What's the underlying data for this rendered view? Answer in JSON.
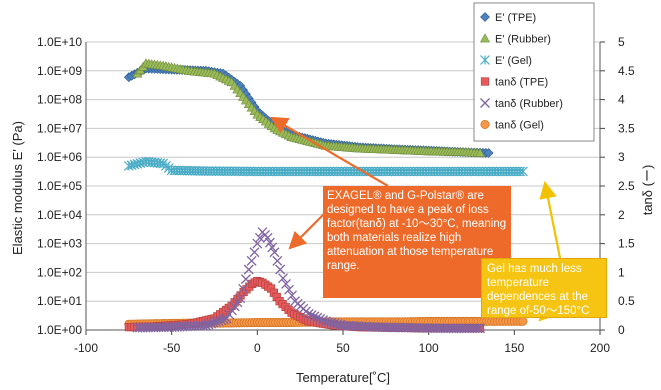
{
  "chart_data": {
    "type": "scatter",
    "xlabel": "Temperature[˚C]",
    "ylabel": "Elastic modulus E' (Pa)",
    "y2label": "tanδ (ー)",
    "xlim": [
      -100,
      200
    ],
    "xticks": [
      "-100",
      "-50",
      "0",
      "50",
      "100",
      "150",
      "200"
    ],
    "ylim_log": [
      0,
      10
    ],
    "yticks": [
      "1.0E+00",
      "1.0E+01",
      "1.0E+02",
      "1.0E+03",
      "1.0E+04",
      "1.0E+05",
      "1.0E+06",
      "1.0E+07",
      "1.0E+08",
      "1.0E+09",
      "1.0E+10"
    ],
    "y2lim": [
      0,
      5
    ],
    "y2ticks": [
      "0",
      "0.5",
      "1",
      "1.5",
      "2",
      "2.5",
      "3",
      "3.5",
      "4",
      "4.5",
      "5"
    ],
    "grid": "horizontal",
    "legend": "top-right",
    "series": [
      {
        "name": "E' (TPE)",
        "axis": "left",
        "marker": "diamond",
        "color": "#4f81bd",
        "x": [
          -75,
          -65,
          -50,
          -30,
          -20,
          -10,
          0,
          10,
          20,
          40,
          60,
          80,
          100,
          120,
          135
        ],
        "y": [
          600000000.0,
          1200000000.0,
          1100000000.0,
          1000000000.0,
          800000000.0,
          300000000.0,
          40000000.0,
          12000000.0,
          6000000.0,
          3000000.0,
          2200000.0,
          1900000.0,
          1700000.0,
          1500000.0,
          1400000.0
        ]
      },
      {
        "name": "E' (Rubber)",
        "axis": "left",
        "marker": "triangle",
        "color": "#9bbb59",
        "x": [
          -70,
          -65,
          -55,
          -40,
          -25,
          -15,
          -5,
          0,
          10,
          20,
          40,
          60,
          80,
          100,
          120,
          130
        ],
        "y": [
          800000000.0,
          1800000000.0,
          1500000000.0,
          1000000000.0,
          800000000.0,
          400000000.0,
          70000000.0,
          30000000.0,
          10000000.0,
          5000000.0,
          2500000.0,
          2000000.0,
          1800000.0,
          1600000.0,
          1500000.0,
          1400000.0
        ]
      },
      {
        "name": "E' (Gel)",
        "axis": "left",
        "marker": "star",
        "color": "#4bacc6",
        "x": [
          -75,
          -65,
          -55,
          -50,
          -30,
          0,
          50,
          100,
          155
        ],
        "y": [
          500000.0,
          700000.0,
          600000.0,
          350000.0,
          330000.0,
          320000.0,
          320000.0,
          320000.0,
          320000.0
        ]
      },
      {
        "name": "tanδ (TPE)",
        "axis": "right",
        "marker": "square",
        "color": "#e55b5b",
        "x": [
          -75,
          -60,
          -40,
          -25,
          -15,
          -8,
          -3,
          0,
          3,
          8,
          13,
          20,
          30,
          45,
          60,
          80,
          100,
          120,
          130
        ],
        "y": [
          0.05,
          0.06,
          0.1,
          0.2,
          0.42,
          0.66,
          0.8,
          0.85,
          0.82,
          0.72,
          0.5,
          0.3,
          0.15,
          0.08,
          0.05,
          0.04,
          0.03,
          0.03,
          0.03
        ]
      },
      {
        "name": "tanδ (Rubber)",
        "axis": "right",
        "marker": "x",
        "color": "#8064a2",
        "x": [
          -70,
          -50,
          -30,
          -18,
          -10,
          -5,
          0,
          3,
          6,
          10,
          15,
          22,
          30,
          40,
          50,
          70,
          90,
          110,
          130
        ],
        "y": [
          0.04,
          0.05,
          0.08,
          0.2,
          0.55,
          1.05,
          1.5,
          1.7,
          1.6,
          1.35,
          0.9,
          0.5,
          0.28,
          0.15,
          0.08,
          0.05,
          0.04,
          0.03,
          0.03
        ]
      },
      {
        "name": "tanδ (Gel)",
        "axis": "right",
        "marker": "circle",
        "color": "#f79646",
        "x": [
          -75,
          -60,
          -40,
          -20,
          0,
          20,
          40,
          60,
          80,
          100,
          120,
          140,
          155
        ],
        "y": [
          0.1,
          0.11,
          0.12,
          0.12,
          0.13,
          0.13,
          0.14,
          0.14,
          0.14,
          0.15,
          0.15,
          0.15,
          0.15
        ]
      }
    ],
    "annotations": {
      "orange": "EXAGEL® and G-Polstar® are designed to have a peak of loss factor(tanδ) at -10～30°C, meaning both materials realize high attenuation at those temperature range.",
      "yellow": "Gel has much less temperature dependences at the range of-50～150°C"
    }
  }
}
